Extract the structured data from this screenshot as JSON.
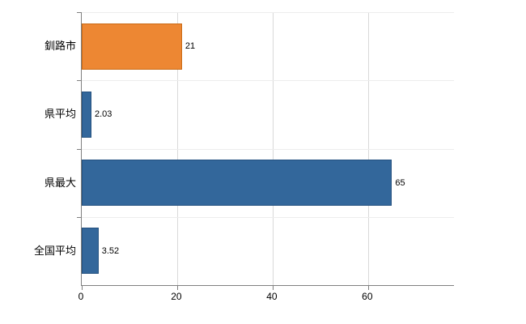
{
  "chart_data": {
    "type": "bar",
    "orientation": "horizontal",
    "title": "",
    "xlabel": "",
    "ylabel": "",
    "categories": [
      "釧路市",
      "県平均",
      "県最大",
      "全国平均"
    ],
    "values": [
      21,
      2.03,
      65,
      3.52
    ],
    "value_labels": [
      "21",
      "2.03",
      "65",
      "3.52"
    ],
    "bar_colors": [
      "#ED8733",
      "#33679B",
      "#33679B",
      "#33679B"
    ],
    "bar_border_colors": [
      "#C96A14",
      "#24517F",
      "#24517F",
      "#24517F"
    ],
    "xlim": [
      0,
      78
    ],
    "x_ticks": [
      0,
      20,
      40,
      60
    ],
    "grid": true,
    "legend": "none"
  },
  "colors": {
    "axis": "#808080",
    "vgrid": "#d9d9d9",
    "hgrid": "#ededed",
    "background": "#ffffff"
  }
}
